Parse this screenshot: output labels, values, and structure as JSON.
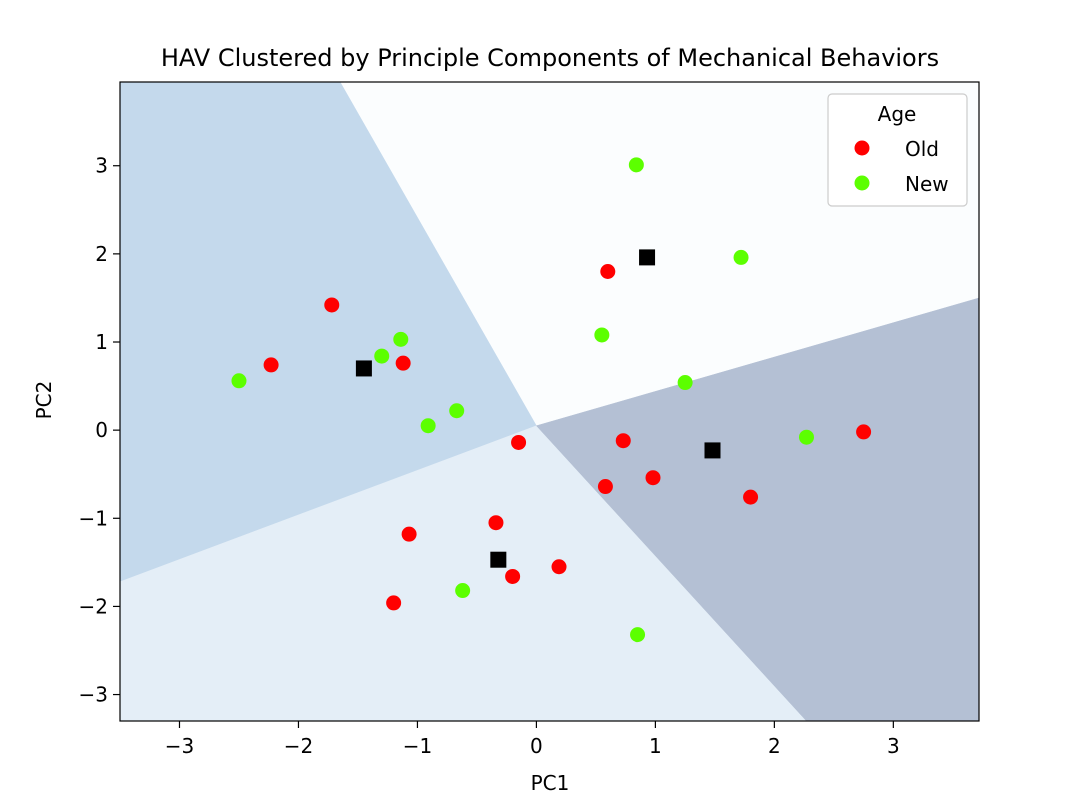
{
  "chart_data": {
    "type": "scatter",
    "title": "HAV Clustered by Principle Components of Mechanical Behaviors",
    "xlabel": "PC1",
    "ylabel": "PC2",
    "xlim": [
      -3.5,
      3.72
    ],
    "ylim": [
      -3.3,
      3.95
    ],
    "xticks": [
      -3,
      -2,
      -1,
      0,
      1,
      2,
      3
    ],
    "yticks": [
      -3,
      -2,
      -1,
      0,
      1,
      2,
      3
    ],
    "grid": false,
    "legend": {
      "title": "Age",
      "placement": "top-right"
    },
    "series": [
      {
        "name": "Old",
        "color": "#ff0000",
        "marker": "circle",
        "points": [
          [
            -1.72,
            1.42
          ],
          [
            -2.23,
            0.74
          ],
          [
            -1.12,
            0.76
          ],
          [
            0.6,
            1.8
          ],
          [
            -0.15,
            -0.14
          ],
          [
            0.73,
            -0.12
          ],
          [
            0.58,
            -0.64
          ],
          [
            0.98,
            -0.54
          ],
          [
            1.8,
            -0.76
          ],
          [
            2.75,
            -0.02
          ],
          [
            -1.07,
            -1.18
          ],
          [
            -0.34,
            -1.05
          ],
          [
            -0.2,
            -1.66
          ],
          [
            0.19,
            -1.55
          ],
          [
            -1.2,
            -1.96
          ]
        ]
      },
      {
        "name": "New",
        "color": "#5cff00",
        "marker": "circle",
        "points": [
          [
            0.84,
            3.01
          ],
          [
            1.72,
            1.96
          ],
          [
            0.55,
            1.08
          ],
          [
            1.25,
            0.54
          ],
          [
            -1.14,
            1.03
          ],
          [
            -1.3,
            0.84
          ],
          [
            -2.5,
            0.56
          ],
          [
            -0.67,
            0.22
          ],
          [
            -0.91,
            0.05
          ],
          [
            2.27,
            -0.08
          ],
          [
            -0.62,
            -1.82
          ],
          [
            0.85,
            -2.32
          ]
        ]
      },
      {
        "name": "",
        "color": "#000000",
        "marker": "square",
        "points": [
          [
            0.93,
            1.96
          ],
          [
            -1.45,
            0.7
          ],
          [
            1.48,
            -0.23
          ],
          [
            -0.32,
            -1.47
          ]
        ]
      }
    ],
    "regions": {
      "center": [
        0.0,
        0.05
      ],
      "boundary_points": {
        "top": [
          -1.65,
          3.95
        ],
        "upper_right": [
          3.72,
          1.5
        ],
        "bottom": [
          2.27,
          -3.3
        ],
        "left": [
          -3.5,
          -1.72
        ]
      },
      "colors": {
        "upper": "#fbfdfe",
        "left": "#c4d9ec",
        "lower": "#e4eef7",
        "right": "#b4c0d4"
      }
    }
  }
}
